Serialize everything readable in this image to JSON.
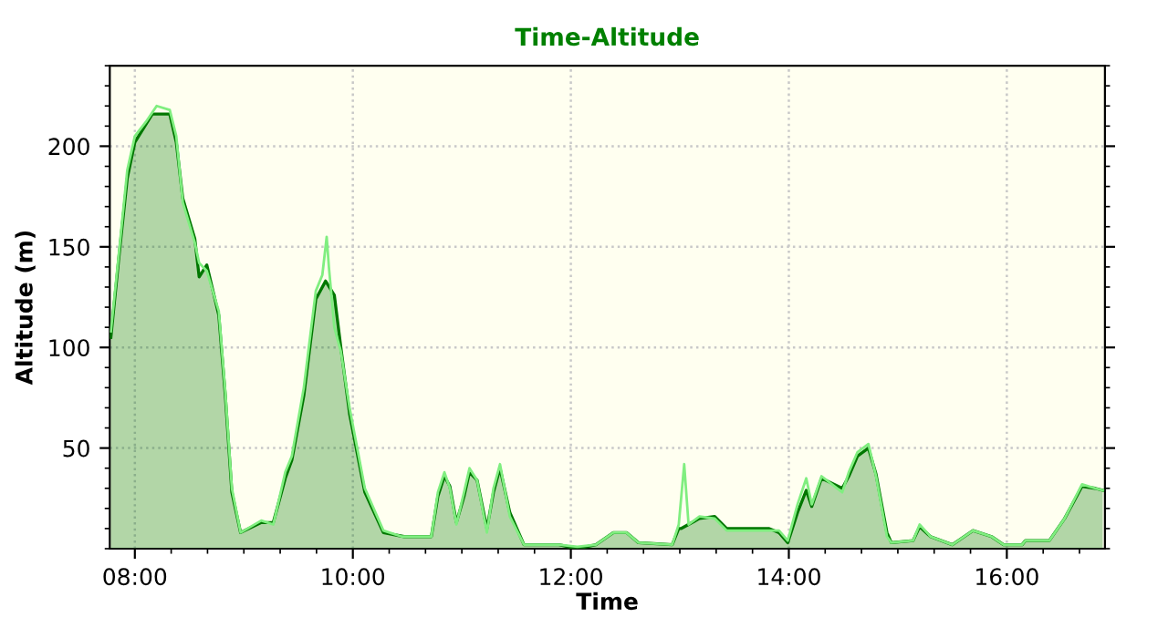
{
  "chart_data": {
    "type": "area",
    "title": "Time-Altitude",
    "xlabel": "Time",
    "ylabel": "Altitude (m)",
    "xlim": [
      7.77,
      16.9
    ],
    "ylim": [
      0,
      240
    ],
    "xticks": [
      {
        "value": 8,
        "label": "08:00"
      },
      {
        "value": 10,
        "label": "10:00"
      },
      {
        "value": 12,
        "label": "12:00"
      },
      {
        "value": 14,
        "label": "14:00"
      },
      {
        "value": 16,
        "label": "16:00"
      }
    ],
    "yticks": [
      50,
      100,
      150,
      200
    ],
    "grid": true,
    "series": [
      {
        "type": "line",
        "color": "#80ee80",
        "x": [
          7.78,
          7.85,
          7.93,
          8.0,
          8.1,
          8.2,
          8.32,
          8.38,
          8.44,
          8.55,
          8.59,
          8.66,
          8.77,
          8.83,
          8.89,
          8.97,
          9.16,
          9.27,
          9.38,
          9.44,
          9.55,
          9.66,
          9.72,
          9.76,
          9.78,
          9.83,
          9.89,
          9.97,
          10.11,
          10.28,
          10.45,
          10.72,
          10.78,
          10.84,
          10.89,
          10.95,
          11.02,
          11.07,
          11.14,
          11.23,
          11.29,
          11.35,
          11.44,
          11.57,
          11.89,
          12.06,
          12.23,
          12.39,
          12.51,
          12.62,
          12.93,
          12.99,
          13.04,
          13.08,
          13.18,
          13.32,
          13.43,
          13.82,
          13.91,
          13.99,
          14.08,
          14.16,
          14.21,
          14.3,
          14.49,
          14.55,
          14.63,
          14.73,
          14.8,
          14.9,
          14.94,
          15.14,
          15.2,
          15.3,
          15.5,
          15.69,
          15.86,
          15.97,
          16.14,
          16.17,
          16.39,
          16.53,
          16.69,
          16.81,
          16.88
        ],
        "values": [
          108,
          145,
          188,
          205,
          212,
          220,
          218,
          205,
          172,
          152,
          142,
          138,
          118,
          78,
          30,
          8,
          14,
          12,
          38,
          46,
          80,
          128,
          136,
          155,
          140,
          110,
          98,
          70,
          30,
          9,
          6,
          6,
          28,
          38,
          30,
          12,
          28,
          40,
          34,
          8,
          30,
          42,
          16,
          2,
          2,
          1,
          2,
          8,
          8,
          3,
          2,
          12,
          42,
          12,
          16,
          15,
          9,
          9,
          9,
          4,
          22,
          35,
          22,
          36,
          28,
          38,
          48,
          52,
          36,
          6,
          3,
          4,
          12,
          6,
          2,
          9,
          6,
          2,
          2,
          4,
          4,
          15,
          32,
          30,
          29
        ]
      },
      {
        "color": "#007700",
        "x": [
          7.78,
          7.85,
          7.93,
          8.0,
          8.16,
          8.32,
          8.38,
          8.44,
          8.55,
          8.59,
          8.66,
          8.77,
          8.83,
          8.89,
          8.97,
          9.16,
          9.27,
          9.38,
          9.44,
          9.55,
          9.66,
          9.75,
          9.83,
          9.89,
          9.97,
          10.11,
          10.28,
          10.47,
          10.72,
          10.78,
          10.84,
          10.89,
          10.95,
          11.02,
          11.07,
          11.14,
          11.23,
          11.29,
          11.35,
          11.44,
          11.57,
          11.89,
          12.06,
          12.23,
          12.39,
          12.51,
          12.62,
          12.93,
          12.99,
          13.01,
          13.18,
          13.32,
          13.43,
          13.82,
          13.91,
          13.99,
          14.08,
          14.16,
          14.21,
          14.3,
          14.49,
          14.55,
          14.63,
          14.73,
          14.8,
          14.9,
          14.94,
          15.14,
          15.2,
          15.3,
          15.5,
          15.69,
          15.86,
          15.97,
          16.14,
          16.17,
          16.39,
          16.53,
          16.69,
          16.81,
          16.88
        ],
        "values": [
          105,
          143,
          184,
          202,
          216,
          216,
          202,
          174,
          154,
          135,
          141,
          116,
          76,
          28,
          8,
          13,
          13,
          35,
          44,
          76,
          124,
          133,
          126,
          100,
          67,
          28,
          8,
          6,
          6,
          26,
          36,
          31,
          13,
          26,
          38,
          34,
          10,
          28,
          40,
          18,
          2,
          2,
          0,
          2,
          8,
          8,
          3,
          2,
          10,
          10,
          15,
          16,
          10,
          10,
          8,
          3,
          18,
          29,
          21,
          35,
          30,
          36,
          46,
          50,
          37,
          8,
          3,
          4,
          11,
          6,
          2,
          9,
          6,
          2,
          2,
          4,
          4,
          15,
          31,
          30,
          29
        ]
      }
    ]
  }
}
